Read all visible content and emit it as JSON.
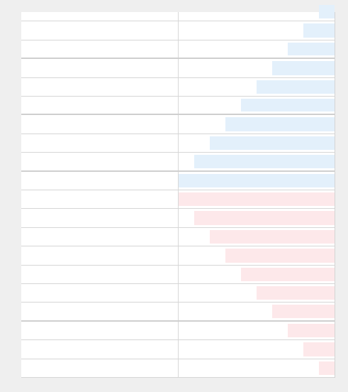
{
  "colors": {
    "positive_bar": "#e3f0fb",
    "negative_bar": "#fde8ea",
    "gridline": "#d6d6d6",
    "background": "#efefef"
  },
  "rows": [
    {
      "label": "",
      "kind": "positive",
      "level": 0.1
    },
    {
      "label": "",
      "kind": "positive",
      "level": 0.2
    },
    {
      "label": "",
      "kind": "positive",
      "level": 0.3
    },
    {
      "label": "",
      "kind": "positive",
      "level": 0.4
    },
    {
      "label": "",
      "kind": "positive",
      "level": 0.5
    },
    {
      "label": "",
      "kind": "positive",
      "level": 0.6
    },
    {
      "label": "",
      "kind": "positive",
      "level": 0.7
    },
    {
      "label": "",
      "kind": "positive",
      "level": 0.8
    },
    {
      "label": "",
      "kind": "positive",
      "level": 0.9
    },
    {
      "label": "",
      "kind": "positive",
      "level": 1.0
    },
    {
      "label": "",
      "kind": "negative",
      "level": 1.0
    },
    {
      "label": "",
      "kind": "negative",
      "level": 0.9
    },
    {
      "label": "",
      "kind": "negative",
      "level": 0.8
    },
    {
      "label": "",
      "kind": "negative",
      "level": 0.7
    },
    {
      "label": "",
      "kind": "negative",
      "level": 0.6
    },
    {
      "label": "",
      "kind": "negative",
      "level": 0.5
    },
    {
      "label": "",
      "kind": "negative",
      "level": 0.4
    },
    {
      "label": "",
      "kind": "negative",
      "level": 0.3
    },
    {
      "label": "",
      "kind": "negative",
      "level": 0.2
    },
    {
      "label": "",
      "kind": "negative",
      "level": 0.1
    }
  ],
  "group_breaks": [
    2,
    5,
    8,
    16
  ]
}
